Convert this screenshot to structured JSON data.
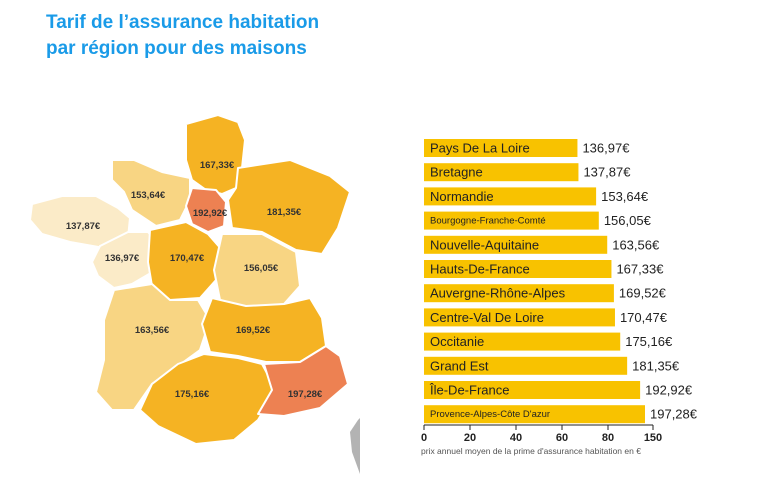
{
  "header": {
    "title_line1": "Tarif de l’assurance habitation",
    "title_line2": "par région pour des maisons"
  },
  "colors": {
    "title": "#1a9be8",
    "bar": "#f8c200",
    "highlight": "#ed8152",
    "map_gold": "#f5b323",
    "map_mid": "#f8d583",
    "map_light": "#fbebc8",
    "corsica": "#b3b3b3"
  },
  "map_labels": {
    "hauts_de_france": "167,33€",
    "normandie": "153,64€",
    "ile_de_france": "192,92€",
    "grand_est": "181,35€",
    "bretagne": "137,87€",
    "pays_de_la_loire": "136,97€",
    "centre_val_de_loire": "170,47€",
    "bourgogne_franche_comte": "156,05€",
    "nouvelle_aquitaine": "163,56€",
    "auvergne_rhone_alpes": "169,52€",
    "occitanie": "175,16€",
    "paca": "197,28€"
  },
  "chart_data": {
    "type": "bar",
    "orientation": "horizontal",
    "categories": [
      "Pays De La Loire",
      "Bretagne",
      "Normandie",
      "Bourgogne-Franche-Comté",
      "Nouvelle-Aquitaine",
      "Hauts-De-France",
      "Auvergne-Rhône-Alpes",
      "Centre-Val De Loire",
      "Occitanie",
      "Grand Est",
      "Île-De-France",
      "Provence-Alpes-Côte D'azur"
    ],
    "values": [
      136.97,
      137.87,
      153.64,
      156.05,
      163.56,
      167.33,
      169.52,
      170.47,
      175.16,
      181.35,
      192.92,
      197.28
    ],
    "value_labels": [
      "136,97€",
      "137,87€",
      "153,64€",
      "156,05€",
      "163,56€",
      "167,33€",
      "169,52€",
      "170,47€",
      "175,16€",
      "181,35€",
      "192,92€",
      "197,28€"
    ],
    "x_ticks": [
      0,
      20,
      40,
      60,
      80,
      150
    ],
    "caption": "prix annuel moyen de la prime d'assurance habitation en €",
    "grid": false
  }
}
